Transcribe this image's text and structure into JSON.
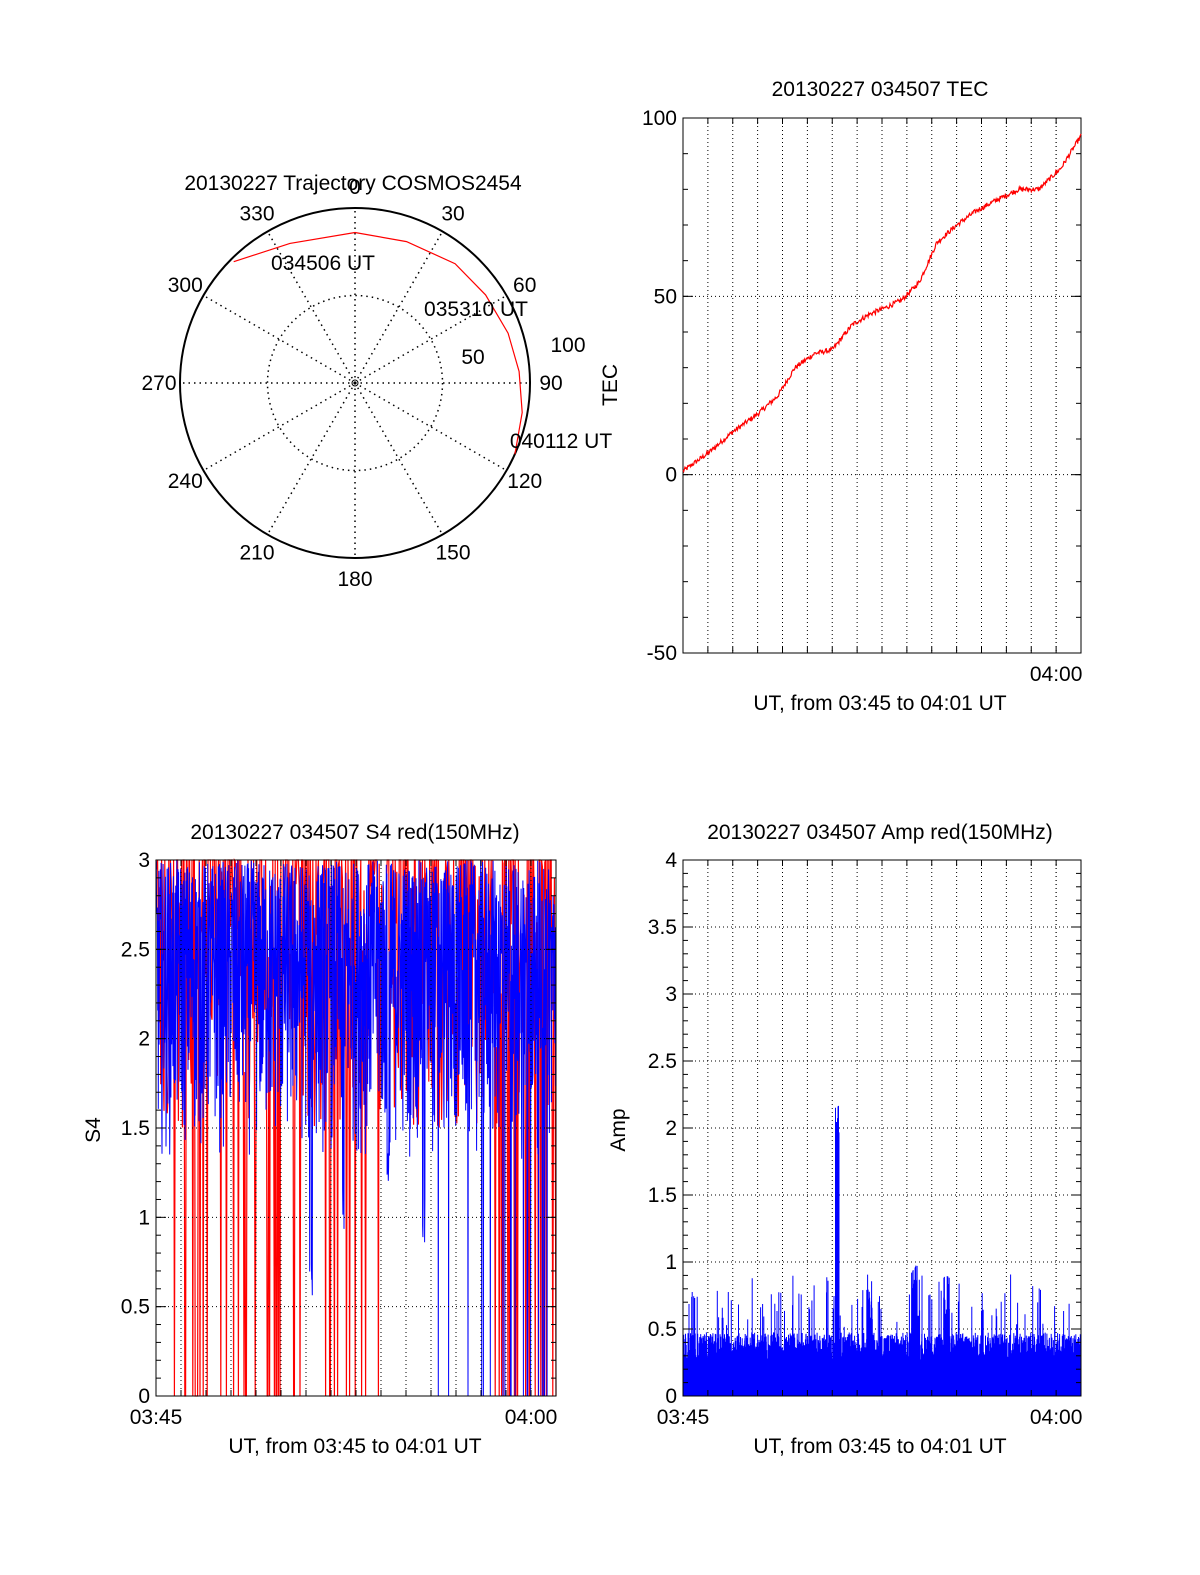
{
  "chart_data": [
    {
      "type": "polar",
      "title": "20130227 Trajectory COSMOS2454",
      "azimuth_labels": [
        "0",
        "30",
        "60",
        "90",
        "120",
        "150",
        "180",
        "210",
        "240",
        "270",
        "300",
        "330"
      ],
      "radius_labels": [
        "50",
        "100"
      ],
      "rlim": [
        0,
        100
      ],
      "grid": true,
      "series": [
        {
          "color": "#ff0000",
          "points": [
            {
              "az": 315,
              "r": 98
            },
            {
              "az": 335,
              "r": 88
            },
            {
              "az": 0,
              "r": 86
            },
            {
              "az": 20,
              "r": 86
            },
            {
              "az": 40,
              "r": 89
            },
            {
              "az": 56,
              "r": 90
            },
            {
              "az": 72,
              "r": 92
            },
            {
              "az": 86,
              "r": 94
            },
            {
              "az": 100,
              "r": 97
            },
            {
              "az": 114,
              "r": 100
            }
          ]
        }
      ],
      "annotations": [
        {
          "text": "034506 UT",
          "az": 318,
          "r": 100
        },
        {
          "text": "035310 UT",
          "az": 60,
          "r": 78
        },
        {
          "text": "040112 UT",
          "az": 112,
          "r": 100
        }
      ]
    },
    {
      "type": "line",
      "title": "20130227 034507 TEC",
      "xlabel": "UT, from 03:45 to 04:01 UT",
      "ylabel": "TEC",
      "xlim": [
        0,
        16
      ],
      "ylim": [
        -50,
        100
      ],
      "xticks": [
        {
          "value": 15,
          "label": "04:00"
        }
      ],
      "yticks": [
        {
          "value": -50,
          "label": "-50"
        },
        {
          "value": 0,
          "label": "0"
        },
        {
          "value": 50,
          "label": "50"
        },
        {
          "value": 100,
          "label": "100"
        }
      ],
      "grid": true,
      "series": [
        {
          "color": "#ff0000",
          "x": [
            0,
            1,
            2,
            3,
            3.8,
            4.5,
            5.3,
            6.0,
            6.8,
            7.5,
            8.2,
            8.8,
            9.5,
            10.2,
            11,
            11.8,
            12.6,
            13.5,
            14.3,
            15.2,
            16
          ],
          "y": [
            1,
            6,
            12,
            17,
            22,
            30,
            34,
            35,
            42,
            45,
            47,
            49,
            54,
            65,
            70,
            74,
            77,
            80,
            80,
            86,
            95
          ]
        }
      ]
    },
    {
      "type": "line",
      "title": "20130227 034507 S4 red(150MHz)",
      "xlabel": "UT, from 03:45 to 04:01 UT",
      "ylabel": "S4",
      "xlim": [
        0,
        16
      ],
      "ylim": [
        0,
        3
      ],
      "xticks": [
        {
          "value": 0,
          "label": "03:45"
        },
        {
          "value": 15,
          "label": "04:00"
        }
      ],
      "yticks": [
        {
          "value": 0,
          "label": "0"
        },
        {
          "value": 0.5,
          "label": "0.5"
        },
        {
          "value": 1,
          "label": "1"
        },
        {
          "value": 1.5,
          "label": "1.5"
        },
        {
          "value": 2,
          "label": "2"
        },
        {
          "value": 2.5,
          "label": "2.5"
        },
        {
          "value": 3,
          "label": "3"
        }
      ],
      "grid": true,
      "series": [
        {
          "color": "#ff0000",
          "style": "spikes",
          "base_min": 1.5,
          "base_max": 3.0,
          "drop_to": 0.0
        },
        {
          "color": "#0000ff",
          "style": "noise",
          "base_min": 1.3,
          "base_max": 3.0,
          "dips": [
            {
              "x": 6.2,
              "y": 0.45
            },
            {
              "x": 7.5,
              "y": 0.9
            },
            {
              "x": 10.7,
              "y": 0.85
            },
            {
              "x": 9.3,
              "y": 1.2
            }
          ]
        }
      ]
    },
    {
      "type": "line",
      "title": "20130227 034507 Amp red(150MHz)",
      "xlabel": "UT, from 03:45 to 04:01 UT",
      "ylabel": "Amp",
      "xlim": [
        0,
        16
      ],
      "ylim": [
        0,
        4
      ],
      "xticks": [
        {
          "value": 0,
          "label": "03:45"
        },
        {
          "value": 15,
          "label": "04:00"
        }
      ],
      "yticks": [
        {
          "value": 0,
          "label": "0"
        },
        {
          "value": 0.5,
          "label": "0.5"
        },
        {
          "value": 1,
          "label": "1"
        },
        {
          "value": 1.5,
          "label": "1.5"
        },
        {
          "value": 2,
          "label": "2"
        },
        {
          "value": 2.5,
          "label": "2.5"
        },
        {
          "value": 3,
          "label": "3"
        },
        {
          "value": 3.5,
          "label": "3.5"
        },
        {
          "value": 4,
          "label": "4"
        }
      ],
      "grid": true,
      "series": [
        {
          "color": "#0000ff",
          "style": "noise",
          "base": 0.3,
          "peaks": [
            {
              "x": 6.2,
              "y": 2.25
            },
            {
              "x": 7.5,
              "y": 0.92
            },
            {
              "x": 9.3,
              "y": 1.0
            },
            {
              "x": 10.6,
              "y": 0.9
            }
          ]
        }
      ]
    }
  ]
}
